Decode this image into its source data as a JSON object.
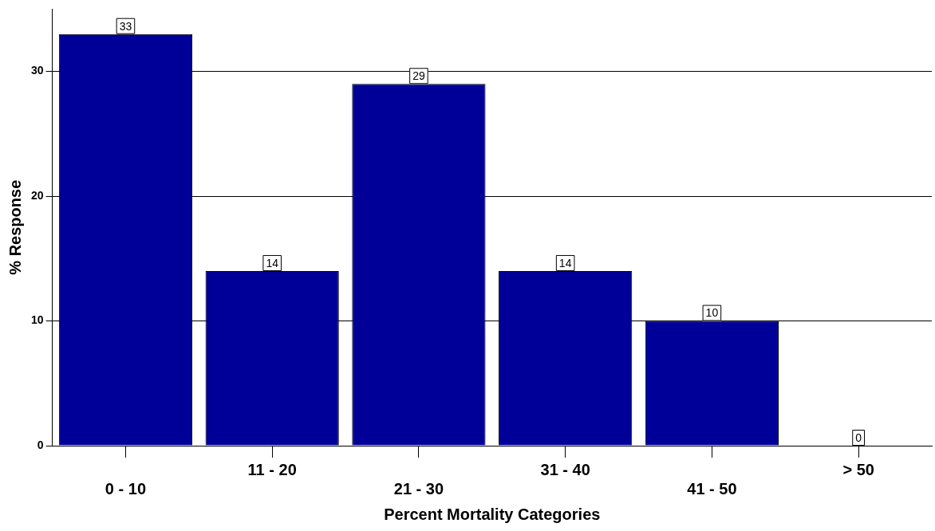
{
  "chart_data": {
    "type": "bar",
    "xlabel": "Percent Mortality Categories",
    "ylabel": "% Response",
    "categories": [
      "0 - 10",
      "11 - 20",
      "21 - 30",
      "31 - 40",
      "41 - 50",
      "> 50"
    ],
    "values": [
      33,
      14,
      29,
      14,
      10,
      0
    ],
    "color": "#000099",
    "ylim": [
      0,
      35
    ],
    "yticks": [
      0,
      10,
      20,
      30
    ],
    "grid": "y",
    "data_labels": true,
    "legend": false
  }
}
